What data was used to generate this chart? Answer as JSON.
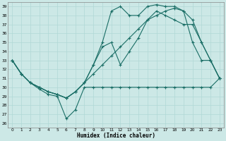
{
  "xlabel": "Humidex (Indice chaleur)",
  "bg_color": "#cce8e6",
  "line_color": "#1a6e66",
  "grid_color": "#b0d8d5",
  "ylim": [
    25.5,
    39.5
  ],
  "xlim": [
    -0.5,
    23.5
  ],
  "yticks": [
    26,
    27,
    28,
    29,
    30,
    31,
    32,
    33,
    34,
    35,
    36,
    37,
    38,
    39
  ],
  "xticks": [
    0,
    1,
    2,
    3,
    4,
    5,
    6,
    7,
    8,
    9,
    10,
    11,
    12,
    13,
    14,
    15,
    16,
    17,
    18,
    19,
    20,
    21,
    22,
    23
  ],
  "series1_y": [
    33,
    31.5,
    30.5,
    29.8,
    29.2,
    29.0,
    26.5,
    27.5,
    30.0,
    30.0,
    30.0,
    30.0,
    30.0,
    30.0,
    30.0,
    30.0,
    30.0,
    30.0,
    30.0,
    30.0,
    30.0,
    30.0,
    30.0,
    31.0
  ],
  "series2_y": [
    33,
    31.5,
    30.5,
    30.0,
    29.5,
    29.2,
    28.8,
    29.5,
    30.5,
    32.5,
    35.0,
    38.5,
    39.0,
    38.0,
    38.0,
    39.0,
    39.2,
    39.0,
    39.0,
    38.5,
    35.0,
    33.0,
    33.0,
    31.0
  ],
  "series3_y": [
    33,
    31.5,
    30.5,
    30.0,
    29.5,
    29.2,
    28.8,
    29.5,
    30.5,
    32.5,
    34.5,
    35.0,
    32.5,
    34.0,
    35.5,
    37.5,
    38.5,
    38.0,
    37.5,
    37.0,
    37.0,
    35.0,
    33.0,
    31.0
  ],
  "series4_y": [
    33,
    31.5,
    30.5,
    30.0,
    29.5,
    29.2,
    28.8,
    29.5,
    30.5,
    31.5,
    32.5,
    33.5,
    34.5,
    35.5,
    36.5,
    37.5,
    38.0,
    38.5,
    38.8,
    38.5,
    37.5,
    35.0,
    33.0,
    31.0
  ]
}
